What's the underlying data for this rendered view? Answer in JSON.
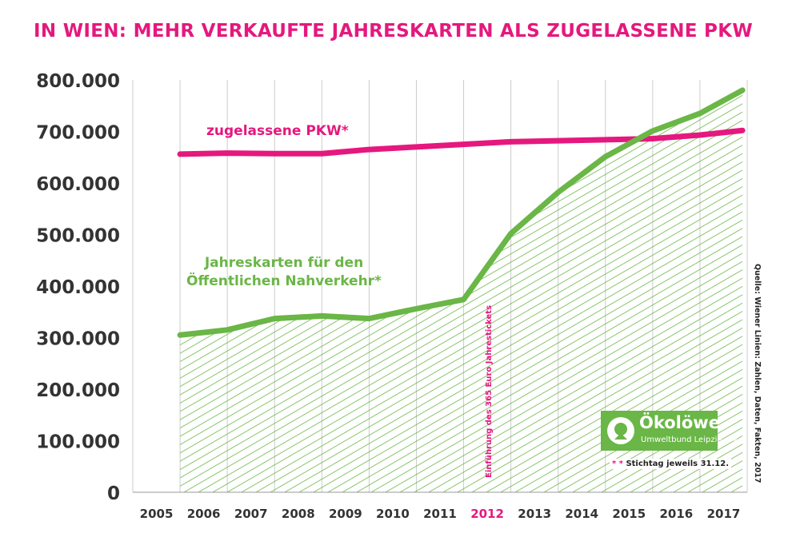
{
  "title": "IN WIEN: MEHR VERKAUFTE JAHRESKARTEN ALS ZUGELASSENE PKW",
  "source": "Quelle: Wiener Linien: Zahlen, Daten, Fakten, 2017",
  "logo": {
    "name": "Ökolöwe",
    "subtitle": "Umweltbund Leipzig e.V."
  },
  "footnote": {
    "stars": "* *",
    "text": "Stichtag jeweils 31.12."
  },
  "annotation": "Einführung des 365 Euro Jahrestickets",
  "colors": {
    "pink": "#e5187e",
    "green": "#6ab646",
    "grid": "#cccccc",
    "text": "#333333"
  },
  "chart_data": {
    "type": "line",
    "title": "IN WIEN: MEHR VERKAUFTE JAHRESKARTEN ALS ZUGELASSENE PKW",
    "x_ticks": [
      "2005",
      "2006",
      "2007",
      "2008",
      "2009",
      "2010",
      "2011",
      "2012",
      "2013",
      "2014",
      "2015",
      "2016",
      "2017"
    ],
    "highlight_tick": "2012",
    "y_ticks": [
      "0",
      "100.000",
      "200.000",
      "300.000",
      "400.000",
      "500.000",
      "600.000",
      "700.000",
      "800.000"
    ],
    "ylim": [
      0,
      800000
    ],
    "grid": "vertical",
    "series": [
      {
        "name": "zugelassene PKW*",
        "color": "#e5187e",
        "x": [
          2005.5,
          2006.5,
          2007.5,
          2008.5,
          2009.5,
          2010.5,
          2011.5,
          2012.5,
          2013.5,
          2014.5,
          2015.5,
          2016.5,
          2017.4
        ],
        "values": [
          656000,
          658000,
          657000,
          657000,
          665000,
          670000,
          675000,
          680000,
          682000,
          684000,
          686000,
          693000,
          702000
        ]
      },
      {
        "name": "Jahreskarten für den\nÖffentlichen Nahverkehr*",
        "color": "#6ab646",
        "x": [
          2005.5,
          2006.5,
          2007.5,
          2008.5,
          2009.5,
          2010.5,
          2011.5,
          2012.5,
          2013.5,
          2014.5,
          2015.5,
          2016.5,
          2017.4
        ],
        "values": [
          305000,
          315000,
          337000,
          342000,
          337000,
          356000,
          374000,
          502000,
          582000,
          651000,
          701000,
          735000,
          780000
        ]
      }
    ]
  }
}
